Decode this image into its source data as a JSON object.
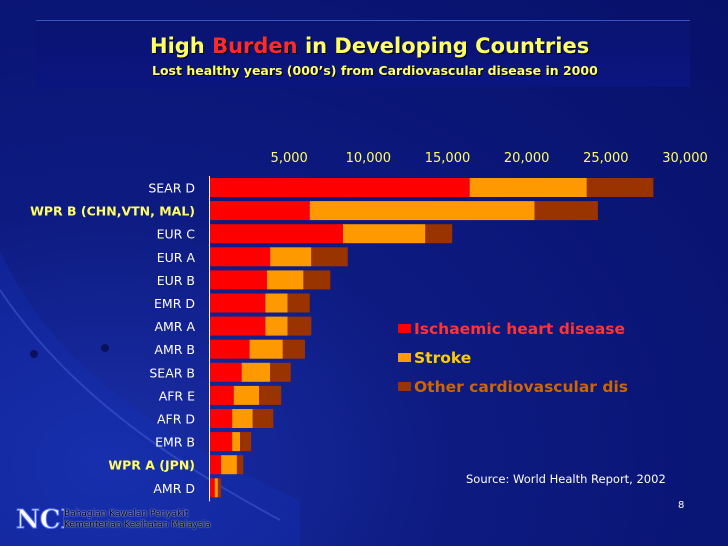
{
  "header": {
    "title_part1": "High",
    "title_highlight": "Burden",
    "title_part2": "in Developing Countries",
    "subtitle": "Lost healthy years (000’s) from Cardiovascular disease in 2000"
  },
  "chart_data": {
    "type": "bar",
    "orientation": "horizontal",
    "stacked": true,
    "categories": [
      "SEAR D",
      "WPR B (CHN,VTN, MAL)",
      "EUR C",
      "EUR A",
      "EUR B",
      "EMR D",
      "AMR A",
      "AMR B",
      "SEAR B",
      "AFR E",
      "AFR D",
      "EMR B",
      "WPR A (JPN)",
      "AMR D"
    ],
    "highlighted_categories": [
      "WPR B (CHN,VTN, MAL)",
      "WPR A (JPN)"
    ],
    "series": [
      {
        "name": "Ischaemic heart disease",
        "color": "#ff0000",
        "values": [
          16400,
          6300,
          8400,
          3800,
          3600,
          3500,
          3500,
          2500,
          2000,
          1500,
          1400,
          1400,
          700,
          300
        ]
      },
      {
        "name": "Stroke",
        "color": "#ff9900",
        "values": [
          7400,
          14200,
          5200,
          2600,
          2300,
          1400,
          1400,
          2100,
          1800,
          1600,
          1300,
          500,
          1000,
          200
        ]
      },
      {
        "name": "Other cardiovascular dis",
        "color": "#993300",
        "values": [
          4200,
          4000,
          1700,
          2300,
          1700,
          1400,
          1500,
          1400,
          1300,
          1400,
          1300,
          700,
          400,
          200
        ]
      }
    ],
    "xlim": [
      0,
      30000
    ],
    "xticks": [
      "5,000",
      "10,000",
      "15,000",
      "20,000",
      "25,000",
      "30,000"
    ],
    "xtick_values": [
      5000,
      10000,
      15000,
      20000,
      25000,
      30000
    ],
    "legend_position": "right"
  },
  "legend": {
    "items": [
      {
        "label": "Ischaemic heart disease",
        "color": "#ff0000",
        "text_color": "#ff3333"
      },
      {
        "label": "Stroke",
        "color": "#ff9900",
        "text_color": "#ffcc00"
      },
      {
        "label": " Other cardiovascular dis",
        "color": "#993300",
        "text_color": "#cc6600"
      }
    ]
  },
  "source": "Source:  World Health Report, 2002",
  "page_number": "8",
  "footer": {
    "logo_text": "NCD",
    "org_line1": "Bahagian Kawalan Penyakit",
    "org_line2": "Kementerian Kesihatan Malaysia"
  }
}
